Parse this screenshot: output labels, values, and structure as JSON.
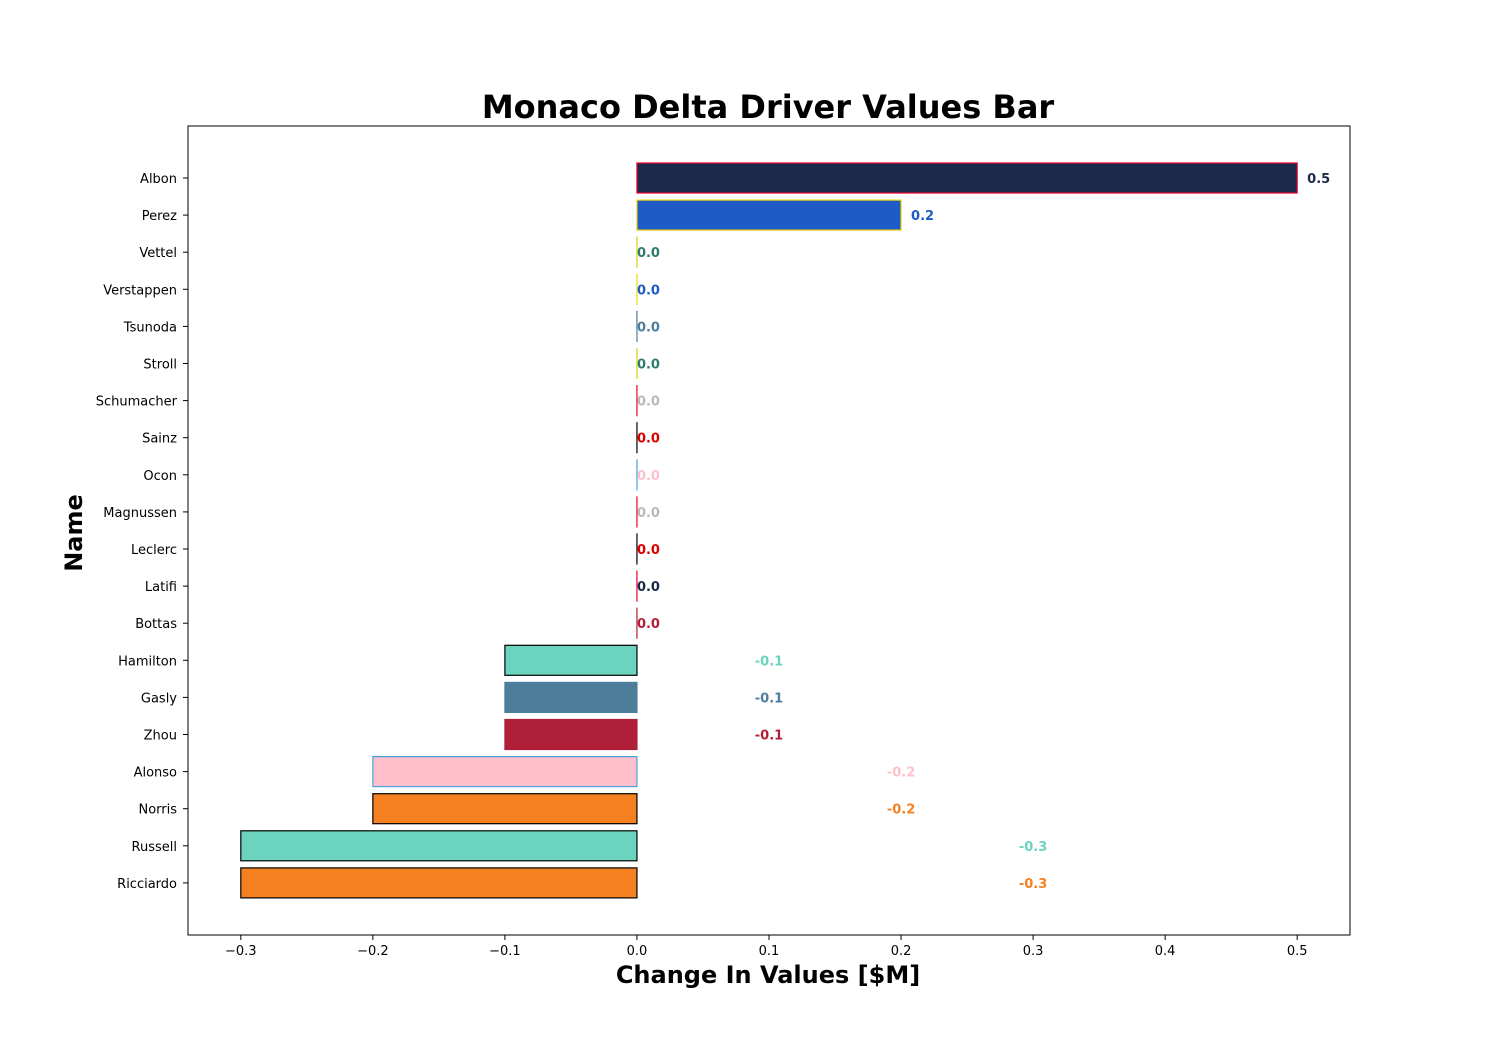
{
  "chart_data": {
    "type": "bar",
    "orientation": "horizontal",
    "title": "Monaco Delta Driver Values Bar",
    "xlabel": "Change In Values [$M]",
    "ylabel": "Name",
    "xlim": [
      -0.34,
      0.54
    ],
    "x_ticks": [
      -0.3,
      -0.2,
      -0.1,
      0.0,
      0.1,
      0.2,
      0.3,
      0.4,
      0.5
    ],
    "x_tick_labels": [
      "−0.3",
      "−0.2",
      "−0.1",
      "0.0",
      "0.1",
      "0.2",
      "0.3",
      "0.4",
      "0.5"
    ],
    "grid": false,
    "legend": "none",
    "categories": [
      "Albon",
      "Perez",
      "Vettel",
      "Verstappen",
      "Tsunoda",
      "Stroll",
      "Schumacher",
      "Sainz",
      "Ocon",
      "Magnussen",
      "Leclerc",
      "Latifi",
      "Bottas",
      "Hamilton",
      "Gasly",
      "Zhou",
      "Alonso",
      "Norris",
      "Russell",
      "Ricciardo"
    ],
    "values": [
      0.5,
      0.2,
      0.0,
      0.0,
      0.0,
      0.0,
      0.0,
      0.0,
      0.0,
      0.0,
      0.0,
      0.0,
      0.0,
      -0.1,
      -0.1,
      -0.1,
      -0.2,
      -0.2,
      -0.3,
      -0.3
    ],
    "value_labels": [
      "0.5",
      "0.2",
      "0.0",
      "0.0",
      "0.0",
      "0.0",
      "0.0",
      "0.0",
      "0.0",
      "0.0",
      "0.0",
      "0.0",
      "0.0",
      "-0.1",
      "-0.1",
      "-0.1",
      "-0.2",
      "-0.2",
      "-0.3",
      "-0.3"
    ],
    "fill_colors": [
      "#1b2a4a",
      "#1e5bc6",
      "#2f7a6d",
      "#1e5bc6",
      "#4e7d9b",
      "#2f7a6d",
      "#b6babd",
      "#dc0000",
      "#ffc0cb",
      "#b6babd",
      "#dc0000",
      "#1b2a4a",
      "#b01f38",
      "#6cd3bf",
      "#4e7d9b",
      "#b01f38",
      "#ffc0cb",
      "#f58020",
      "#6cd3bf",
      "#f58020"
    ],
    "edge_colors": [
      "#e8002d",
      "#f5d40a",
      "#d4d40a",
      "#f5d40a",
      "#4e7d9b",
      "#d4d40a",
      "#e8002d",
      "#000000",
      "#4aa3df",
      "#e8002d",
      "#000000",
      "#e8002d",
      "#b01f38",
      "#000000",
      "#4e7d9b",
      "#b01f38",
      "#4aa3df",
      "#000000",
      "#000000",
      "#000000"
    ]
  }
}
